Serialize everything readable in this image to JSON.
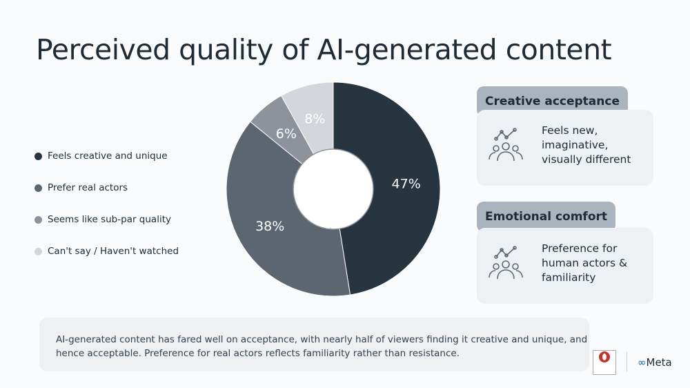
{
  "title": "Perceived quality of AI-generated content",
  "chart_data": {
    "type": "pie",
    "subtype": "donut",
    "categories": [
      "Feels creative and unique",
      "Prefer real actors",
      "Seems like sub-par quality",
      "Can't say / Haven't watched"
    ],
    "values": [
      47,
      38,
      6,
      8
    ],
    "labels": [
      "47%",
      "38%",
      "6%",
      "8%"
    ],
    "colors": [
      "#263540",
      "#5c6670",
      "#8e929b",
      "#d3d7dc"
    ],
    "legend": "left"
  },
  "cards": [
    {
      "tag": "Creative acceptance",
      "text": [
        "Feels new,",
        "imaginative,",
        "visually different"
      ],
      "icon": "audience-growth-icon"
    },
    {
      "tag": "Emotional comfort",
      "text": [
        "Preference for",
        "human actors &",
        "familiarity"
      ],
      "icon": "audience-growth-icon"
    }
  ],
  "note": "AI-generated content has fared well on acceptance, with nearly half of viewers finding it creative and unique, and hence acceptable. Preference for real actors reflects familiarity rather than resistance.",
  "logos": {
    "ormax": "ORMAX MEDIA",
    "meta": "Meta"
  }
}
